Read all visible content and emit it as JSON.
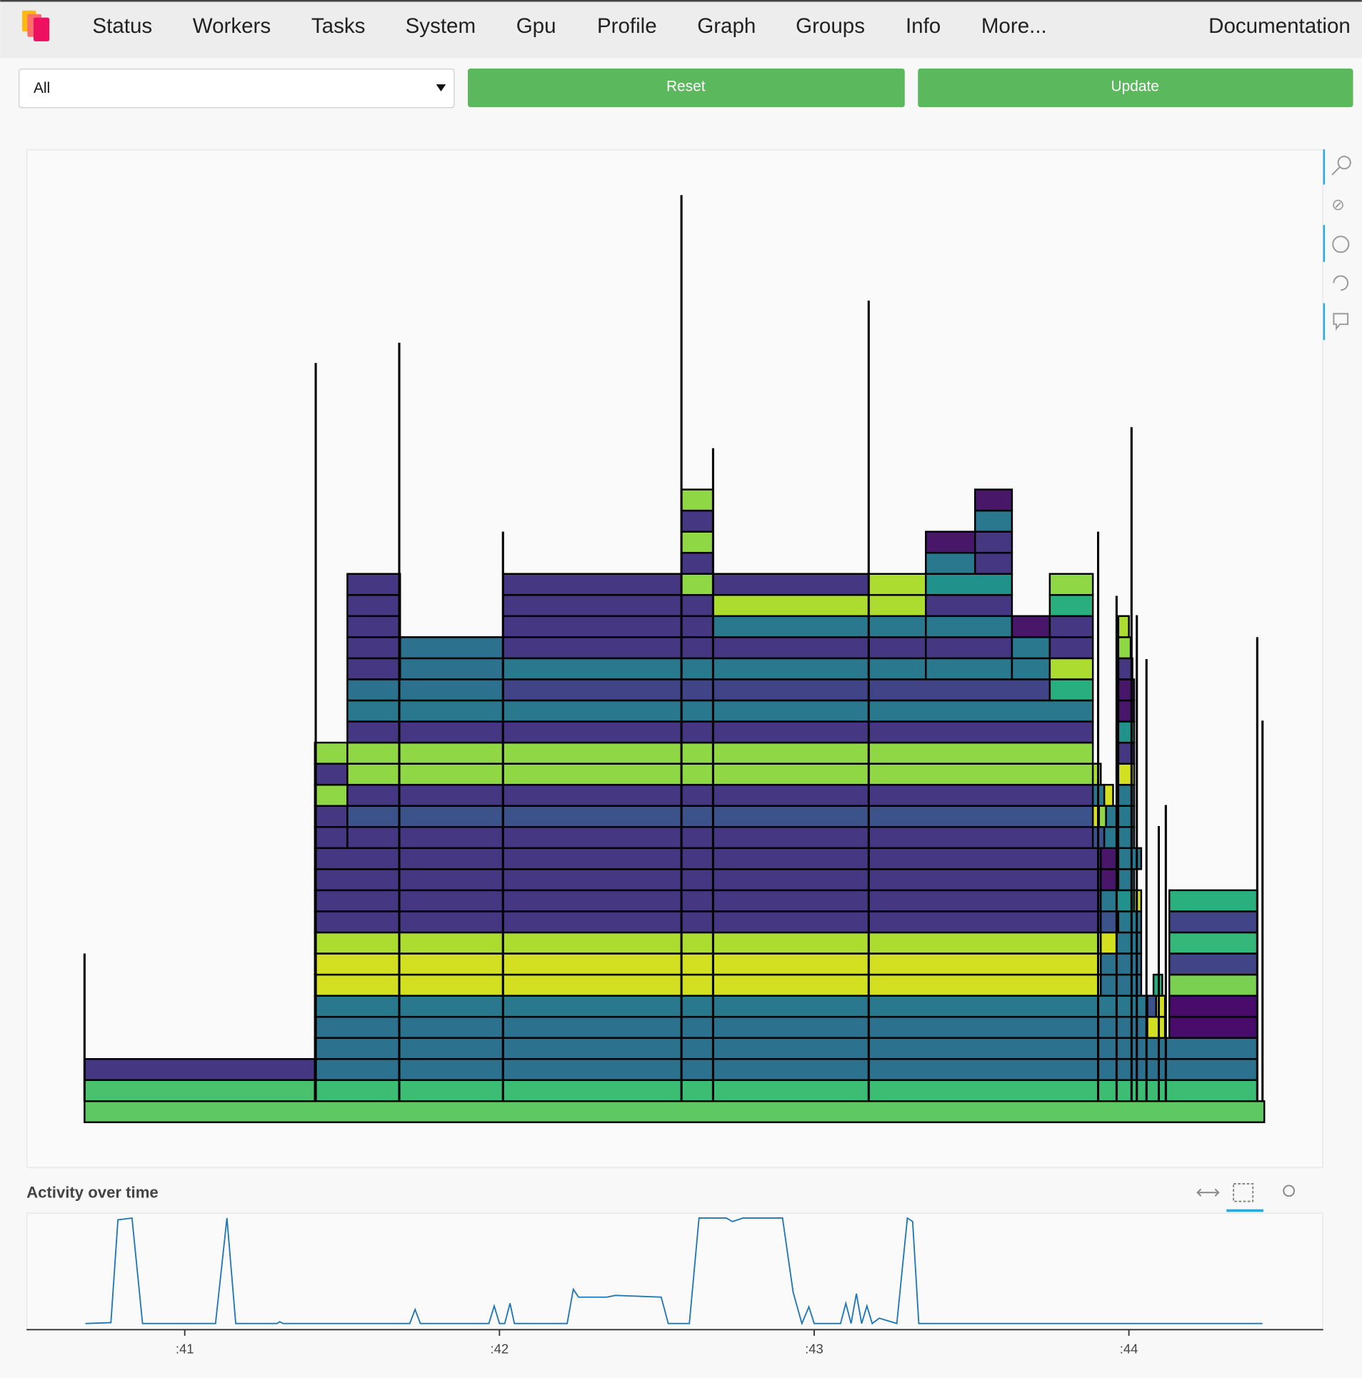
{
  "nav": {
    "items": [
      "Status",
      "Workers",
      "Tasks",
      "System",
      "Gpu",
      "Profile",
      "Graph",
      "Groups",
      "Info",
      "More..."
    ],
    "documentation": "Documentation"
  },
  "controls": {
    "select": "All",
    "reset": "Reset",
    "update": "Update"
  },
  "activity": {
    "title": "Activity over time",
    "ticks": [
      ":41",
      ":42",
      ":43",
      ":44"
    ]
  }
}
